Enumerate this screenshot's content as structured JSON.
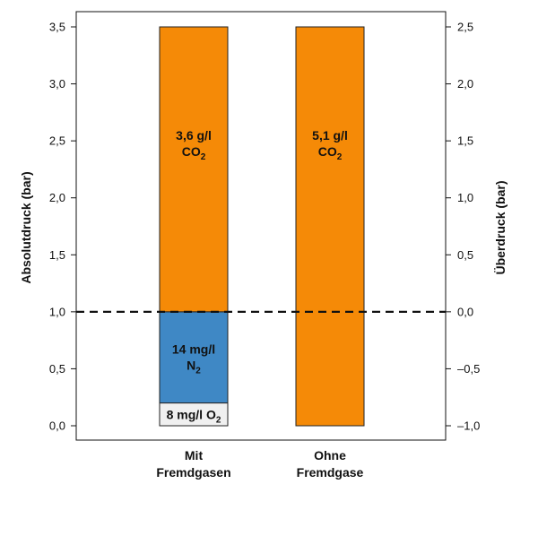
{
  "chart_data": {
    "type": "bar",
    "stacked": true,
    "categories": [
      [
        "Mit",
        "Fremdgasen"
      ],
      [
        "Ohne",
        "Fremdgase"
      ]
    ],
    "series": [
      {
        "name": "O2",
        "values": [
          0.2,
          0
        ],
        "color": "#f0f0f0",
        "labels": [
          [
            {
              "main": "8 mg/l O",
              "sub": "2"
            }
          ],
          null
        ]
      },
      {
        "name": "N2",
        "values": [
          0.8,
          0
        ],
        "color": "#3f88c5",
        "labels": [
          [
            {
              "main": "14 mg/l",
              "sub": ""
            },
            {
              "main": "N",
              "sub": "2"
            }
          ],
          null
        ]
      },
      {
        "name": "CO2",
        "values": [
          2.5,
          3.5
        ],
        "color": "#f58a07",
        "labels": [
          [
            {
              "main": "3,6 g/l",
              "sub": ""
            },
            {
              "main": "CO",
              "sub": "2"
            }
          ],
          [
            {
              "main": "5,1 g/l",
              "sub": ""
            },
            {
              "main": "CO",
              "sub": "2"
            }
          ]
        ]
      }
    ],
    "ylabel": "Absolutdruck (bar)",
    "y2label": "Überdruck (bar)",
    "ylim": [
      0,
      3.5
    ],
    "yticks": [
      "0,0",
      "0,5",
      "1,0",
      "1,5",
      "2,0",
      "2,5",
      "3,0",
      "3,5"
    ],
    "y2ticks": [
      "–1,0",
      "–0,5",
      "0,0",
      "0,5",
      "1,0",
      "1,5",
      "2,0",
      "2,5"
    ],
    "reference_line": {
      "value": 1.0,
      "style": "dashed"
    }
  }
}
